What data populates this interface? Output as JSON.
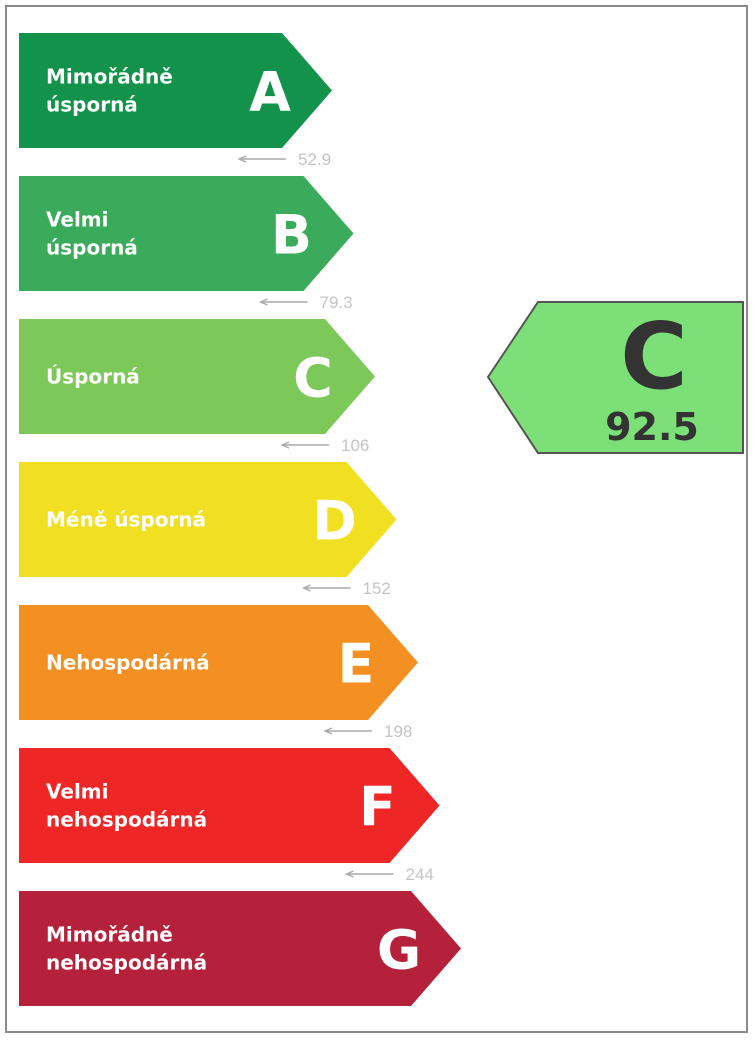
{
  "classes": [
    {
      "letter": "A",
      "label_lines": [
        "Mimořádně",
        "úsporná"
      ],
      "color": "#12924a",
      "threshold": "52.9"
    },
    {
      "letter": "B",
      "label_lines": [
        "Velmi",
        "úsporná"
      ],
      "color": "#3aab5a",
      "threshold": "79.3"
    },
    {
      "letter": "C",
      "label_lines": [
        "Úsporná"
      ],
      "color": "#7cc95a",
      "threshold": "106"
    },
    {
      "letter": "D",
      "label_lines": [
        "Méně úsporná"
      ],
      "color": "#f0e021",
      "threshold": "152"
    },
    {
      "letter": "E",
      "label_lines": [
        "Nehospodárná"
      ],
      "color": "#f39021",
      "threshold": "198"
    },
    {
      "letter": "F",
      "label_lines": [
        "Velmi",
        "nehospodárná"
      ],
      "color": "#ee2626",
      "threshold": "244"
    },
    {
      "letter": "G",
      "label_lines": [
        "Mimořádně",
        "nehospodárná"
      ],
      "color": "#b5213a",
      "threshold": null
    }
  ],
  "indicator": {
    "letter": "C",
    "value": "92.5",
    "color": "#7ddf78",
    "text_color": "#333333"
  }
}
